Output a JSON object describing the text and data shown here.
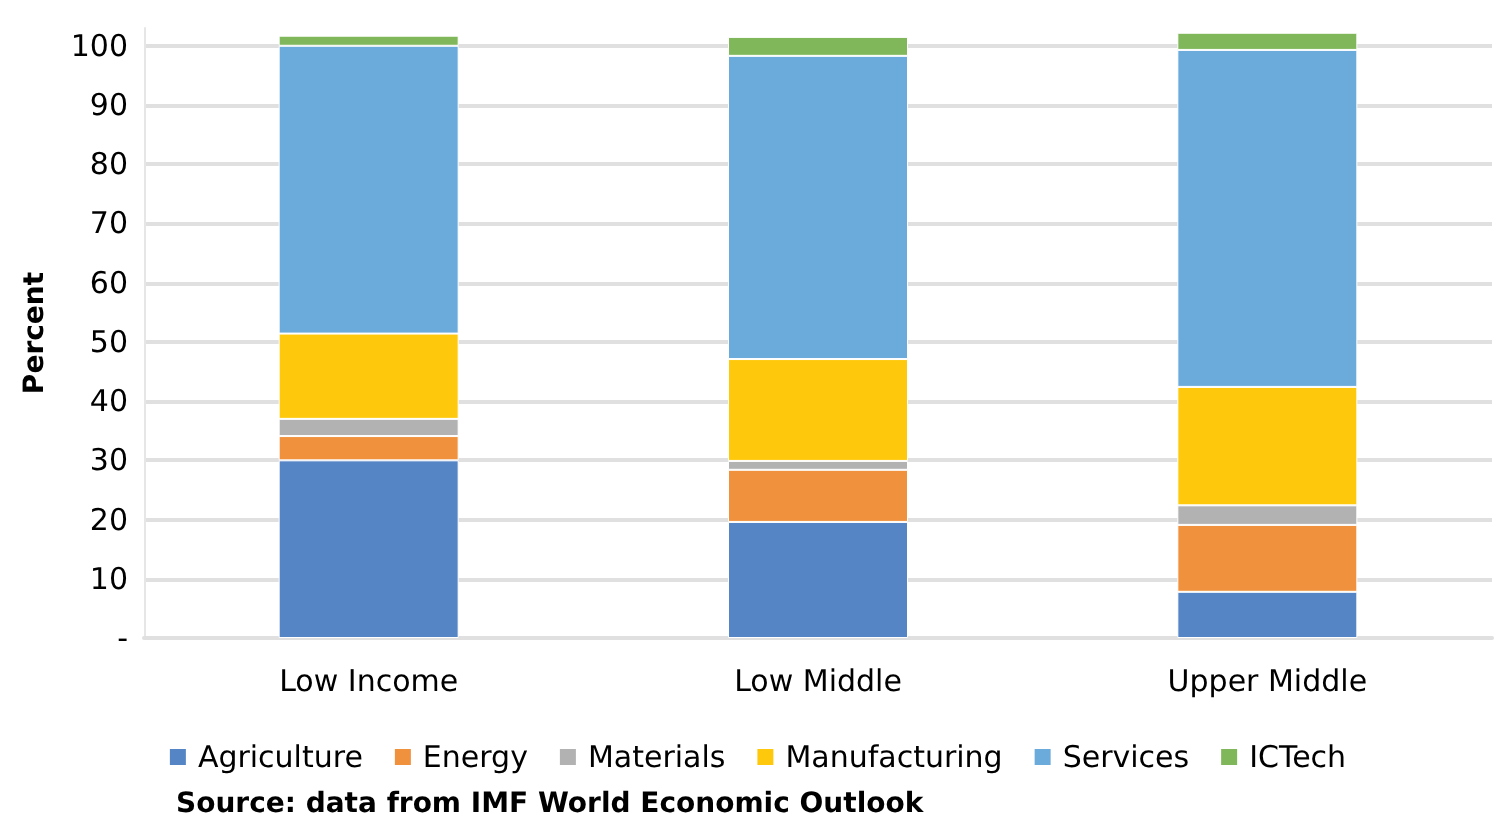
{
  "chart_data": {
    "type": "bar",
    "stacked": true,
    "ylabel": "Percent",
    "categories": [
      "Low Income",
      "Low Middle",
      "Upper Middle"
    ],
    "series": [
      {
        "name": "Agriculture",
        "color": "#5585c5",
        "values": [
          30,
          19.6,
          7.8
        ]
      },
      {
        "name": "Energy",
        "color": "#f0913e",
        "values": [
          4.1,
          8.8,
          11.3
        ]
      },
      {
        "name": "Materials",
        "color": "#b2b2b2",
        "values": [
          2.9,
          1.5,
          3.3
        ]
      },
      {
        "name": "Manufacturing",
        "color": "#fec90c",
        "values": [
          14.4,
          17.2,
          20.0
        ]
      },
      {
        "name": "Services",
        "color": "#6babdb",
        "values": [
          48.6,
          51.2,
          56.9
        ]
      },
      {
        "name": "ICTech",
        "color": "#7fb75a",
        "values": [
          1.7,
          3.2,
          2.9
        ]
      }
    ],
    "ylim": [
      0,
      103
    ],
    "yticks": [
      {
        "value": 0,
        "label": "-"
      },
      10,
      20,
      30,
      40,
      50,
      60,
      70,
      80,
      90,
      100
    ],
    "grid": "y",
    "legend": "bottom",
    "annotations": [
      "Source: data from IMF World Economic Outlook"
    ]
  }
}
